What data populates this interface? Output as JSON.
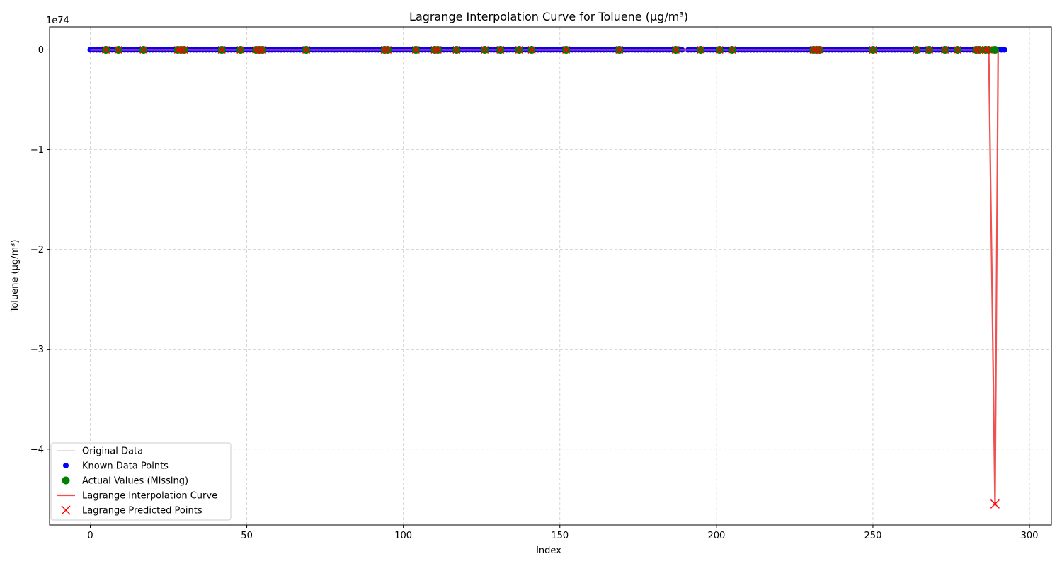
{
  "chart_data": {
    "type": "line",
    "title": "Lagrange Interpolation Curve for Toluene (µg/m³)",
    "xlabel": "Index",
    "ylabel": "Toluene (µg/m³)",
    "y_offset_text": "1e74",
    "xlim": [
      -13,
      307
    ],
    "ylim": [
      -4.76,
      0.23
    ],
    "x_ticks": [
      0,
      50,
      100,
      150,
      200,
      250,
      300
    ],
    "y_ticks": [
      0,
      -1,
      -2,
      -3,
      -4
    ],
    "y_tick_labels": [
      "0",
      "−1",
      "−2",
      "−3",
      "−4"
    ],
    "grid": true,
    "legend_position": "lower-left",
    "colors": {
      "original": "#c0c0c0",
      "known": "#0000ff",
      "actual": "#008000",
      "curve": "#f05050",
      "predicted": "#ff0000"
    },
    "legend": [
      {
        "label": "Original Data",
        "marker": "line-gray"
      },
      {
        "label": "Known Data Points",
        "marker": "dot-blue"
      },
      {
        "label": "Actual Values (Missing)",
        "marker": "dot-green"
      },
      {
        "label": "Lagrange Interpolation Curve",
        "marker": "line-red"
      },
      {
        "label": "Lagrange Predicted Points",
        "marker": "x-red"
      }
    ],
    "known_points": {
      "x_ranges": [
        [
          0,
          189
        ],
        [
          191,
          292
        ]
      ],
      "y": 0
    },
    "missing_indices": [
      5,
      9,
      17,
      28,
      29,
      30,
      42,
      48,
      53,
      54,
      55,
      69,
      94,
      95,
      104,
      110,
      111,
      117,
      126,
      131,
      137,
      141,
      152,
      169,
      187,
      195,
      201,
      205,
      231,
      232,
      233,
      250,
      264,
      268,
      273,
      277,
      283,
      284,
      286,
      287,
      289
    ],
    "actual_values": {
      "y": 0
    },
    "predicted_points": [
      {
        "x": 289,
        "y": -4.55
      }
    ],
    "interpolation_curve": [
      {
        "x": 0,
        "y": 0
      },
      {
        "x": 287,
        "y": 0
      },
      {
        "x": 289,
        "y": -4.55
      },
      {
        "x": 290,
        "y": 0
      }
    ]
  }
}
